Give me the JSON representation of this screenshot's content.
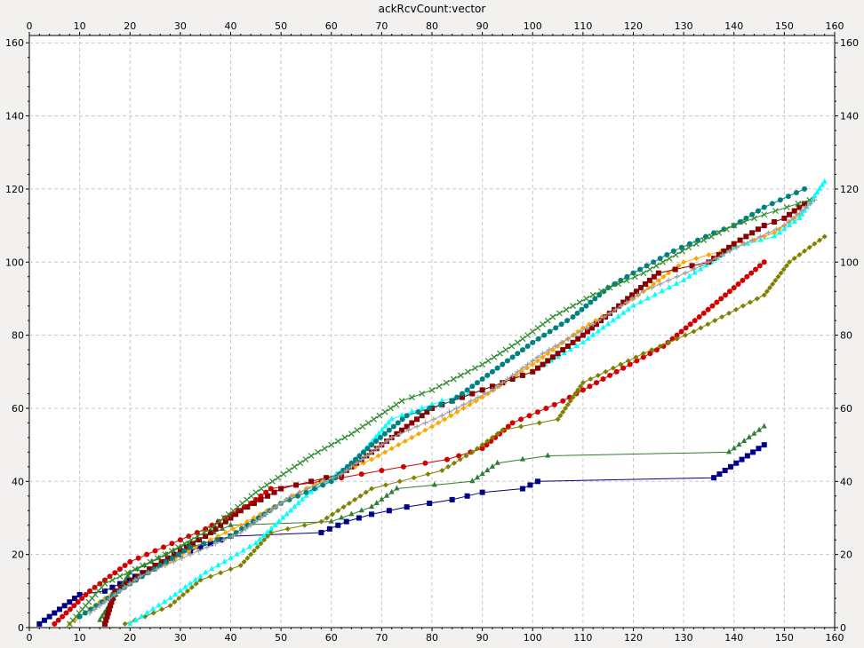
{
  "chart_data": {
    "type": "line",
    "title": "ackRcvCount:vector",
    "xlabel": "",
    "ylabel": "",
    "xlim": [
      0,
      160
    ],
    "ylim": [
      0,
      162
    ],
    "xticks": [
      0,
      10,
      20,
      30,
      40,
      50,
      60,
      70,
      80,
      90,
      100,
      110,
      120,
      130,
      140,
      150,
      160
    ],
    "yticks": [
      0,
      20,
      40,
      60,
      80,
      100,
      120,
      140,
      160
    ],
    "grid": true,
    "legend": "none",
    "series": [
      {
        "color": "#00008b",
        "marker": "square",
        "anchors": [
          [
            2,
            1
          ],
          [
            10,
            9
          ],
          [
            15,
            10
          ],
          [
            30,
            20
          ],
          [
            40,
            25
          ],
          [
            58,
            26
          ],
          [
            63,
            29
          ],
          [
            68,
            31
          ],
          [
            75,
            33
          ],
          [
            84,
            35
          ],
          [
            90,
            37
          ],
          [
            98,
            38
          ],
          [
            101,
            40
          ],
          [
            136,
            41
          ],
          [
            146,
            50
          ]
        ]
      },
      {
        "color": "#2e7d32",
        "marker": "triangle",
        "anchors": [
          [
            14,
            2
          ],
          [
            20,
            15
          ],
          [
            30,
            22
          ],
          [
            40,
            28
          ],
          [
            60,
            29
          ],
          [
            68,
            33
          ],
          [
            73,
            38
          ],
          [
            88,
            40
          ],
          [
            93,
            45
          ],
          [
            103,
            47
          ],
          [
            139,
            48
          ],
          [
            146,
            55
          ]
        ]
      },
      {
        "color": "#d40000",
        "marker": "circle",
        "anchors": [
          [
            5,
            1
          ],
          [
            12,
            10
          ],
          [
            20,
            18
          ],
          [
            35,
            27
          ],
          [
            44,
            34
          ],
          [
            48,
            38
          ],
          [
            58,
            40
          ],
          [
            70,
            43
          ],
          [
            83,
            46
          ],
          [
            90,
            49
          ],
          [
            96,
            56
          ],
          [
            106,
            62
          ],
          [
            114,
            68
          ],
          [
            126,
            77
          ],
          [
            134,
            86
          ],
          [
            146,
            100
          ]
        ]
      },
      {
        "color": "#808000",
        "marker": "diamond",
        "anchors": [
          [
            19,
            1
          ],
          [
            23,
            3
          ],
          [
            28,
            6
          ],
          [
            34,
            13
          ],
          [
            42,
            17
          ],
          [
            48,
            26
          ],
          [
            58,
            29
          ],
          [
            68,
            38
          ],
          [
            82,
            43
          ],
          [
            88,
            48
          ],
          [
            94,
            54
          ],
          [
            105,
            57
          ],
          [
            110,
            67
          ],
          [
            122,
            75
          ],
          [
            132,
            81
          ],
          [
            146,
            91
          ],
          [
            151,
            100
          ],
          [
            158,
            107
          ]
        ]
      },
      {
        "color": "#ffa500",
        "marker": "diamond",
        "anchors": [
          [
            8,
            1
          ],
          [
            15,
            8
          ],
          [
            25,
            16
          ],
          [
            33,
            22
          ],
          [
            42,
            28
          ],
          [
            55,
            38
          ],
          [
            68,
            46
          ],
          [
            80,
            55
          ],
          [
            90,
            63
          ],
          [
            100,
            72
          ],
          [
            110,
            82
          ],
          [
            120,
            90
          ],
          [
            130,
            100
          ],
          [
            140,
            104
          ],
          [
            148,
            108
          ],
          [
            153,
            113
          ]
        ]
      },
      {
        "color": "#00ffff",
        "marker": "triangle",
        "anchors": [
          [
            20,
            1
          ],
          [
            28,
            8
          ],
          [
            35,
            15
          ],
          [
            45,
            23
          ],
          [
            55,
            36
          ],
          [
            65,
            46
          ],
          [
            72,
            57
          ],
          [
            82,
            62
          ],
          [
            90,
            65
          ],
          [
            100,
            70
          ],
          [
            110,
            78
          ],
          [
            120,
            88
          ],
          [
            130,
            95
          ],
          [
            140,
            104
          ],
          [
            148,
            107
          ],
          [
            153,
            112
          ],
          [
            158,
            122
          ]
        ]
      },
      {
        "color": "#8b0000",
        "marker": "square",
        "anchors": [
          [
            15,
            1
          ],
          [
            17,
            10
          ],
          [
            25,
            17
          ],
          [
            35,
            25
          ],
          [
            42,
            32
          ],
          [
            50,
            38
          ],
          [
            62,
            42
          ],
          [
            70,
            50
          ],
          [
            80,
            60
          ],
          [
            90,
            65
          ],
          [
            100,
            70
          ],
          [
            110,
            80
          ],
          [
            118,
            89
          ],
          [
            125,
            97
          ],
          [
            135,
            100
          ],
          [
            140,
            105
          ],
          [
            146,
            110
          ],
          [
            150,
            112
          ],
          [
            154,
            116
          ]
        ]
      },
      {
        "color": "#008080",
        "marker": "circle",
        "anchors": [
          [
            10,
            3
          ],
          [
            20,
            12
          ],
          [
            32,
            22
          ],
          [
            40,
            25
          ],
          [
            50,
            34
          ],
          [
            60,
            40
          ],
          [
            68,
            50
          ],
          [
            75,
            58
          ],
          [
            84,
            62
          ],
          [
            90,
            68
          ],
          [
            100,
            78
          ],
          [
            108,
            85
          ],
          [
            115,
            93
          ],
          [
            120,
            97
          ],
          [
            128,
            103
          ],
          [
            136,
            108
          ],
          [
            140,
            110
          ],
          [
            146,
            115
          ],
          [
            154,
            120
          ]
        ]
      },
      {
        "color": "#2e8b2e",
        "marker": "x",
        "anchors": [
          [
            8,
            1
          ],
          [
            15,
            12
          ],
          [
            27,
            20
          ],
          [
            36,
            27
          ],
          [
            45,
            37
          ],
          [
            56,
            47
          ],
          [
            64,
            53
          ],
          [
            74,
            62
          ],
          [
            80,
            65
          ],
          [
            90,
            72
          ],
          [
            97,
            78
          ],
          [
            104,
            85
          ],
          [
            112,
            91
          ],
          [
            122,
            97
          ],
          [
            131,
            104
          ],
          [
            140,
            110
          ],
          [
            146,
            113
          ],
          [
            155,
            117
          ]
        ]
      },
      {
        "color": "#a0a0a0",
        "marker": "plus",
        "anchors": [
          [
            12,
            4
          ],
          [
            22,
            14
          ],
          [
            32,
            20
          ],
          [
            42,
            26
          ],
          [
            52,
            36
          ],
          [
            62,
            42
          ],
          [
            72,
            52
          ],
          [
            82,
            58
          ],
          [
            92,
            65
          ],
          [
            102,
            75
          ],
          [
            112,
            83
          ],
          [
            122,
            92
          ],
          [
            132,
            98
          ],
          [
            142,
            105
          ],
          [
            150,
            110
          ],
          [
            156,
            117
          ]
        ]
      }
    ]
  }
}
